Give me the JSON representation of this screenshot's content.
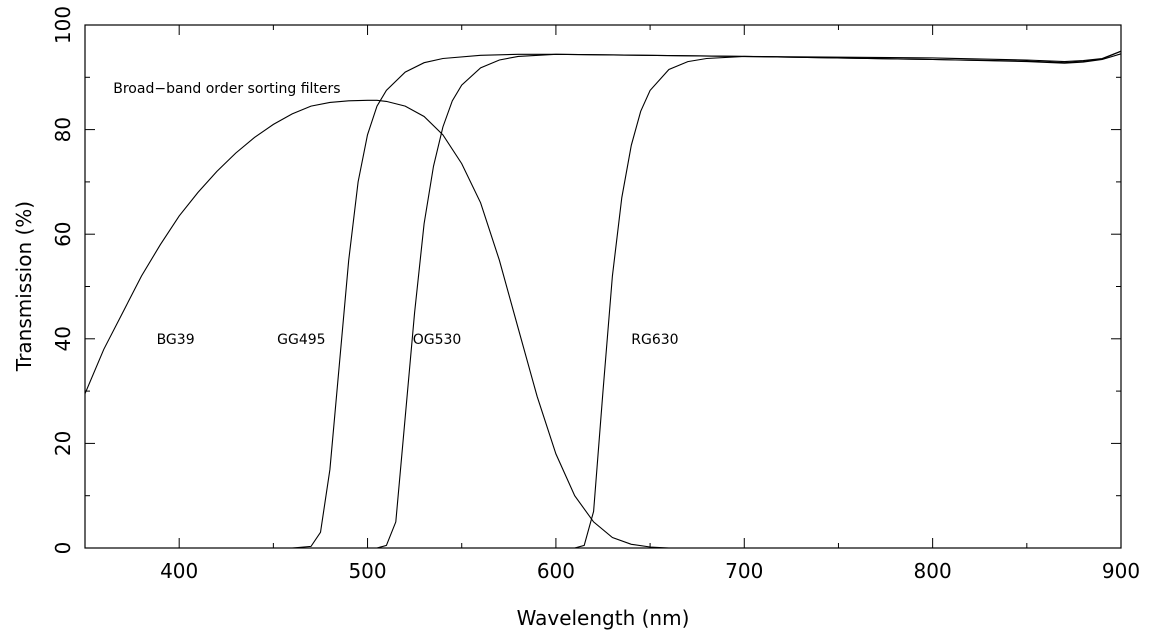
{
  "chart_data": {
    "type": "line",
    "title": "",
    "xlabel": "Wavelength (nm)",
    "ylabel": "Transmission (%)",
    "xlim": [
      350,
      900
    ],
    "ylim": [
      0,
      100
    ],
    "grid": false,
    "x_ticks_major": [
      400,
      500,
      600,
      700,
      800,
      900
    ],
    "x_ticks_minor": [
      350,
      450,
      550,
      650,
      750,
      850
    ],
    "y_ticks_major": [
      0,
      20,
      40,
      60,
      80,
      100
    ],
    "y_ticks_minor": [
      10,
      30,
      50,
      70,
      90
    ],
    "annotations": [
      {
        "id": "heading",
        "text": "Broad−band order sorting filters",
        "x": 365,
        "y": 88
      },
      {
        "id": "bg39",
        "text": "BG39",
        "x": 388,
        "y": 40
      },
      {
        "id": "gg495",
        "text": "GG495",
        "x": 452,
        "y": 40
      },
      {
        "id": "og530",
        "text": "OG530",
        "x": 524,
        "y": 40
      },
      {
        "id": "rg630",
        "text": "RG630",
        "x": 640,
        "y": 40
      }
    ],
    "series": [
      {
        "name": "BG39",
        "x": [
          350,
          360,
          370,
          380,
          390,
          400,
          410,
          420,
          430,
          440,
          450,
          460,
          470,
          480,
          490,
          500,
          505,
          510,
          520,
          530,
          540,
          550,
          560,
          570,
          580,
          590,
          600,
          610,
          620,
          630,
          640,
          650,
          660,
          700,
          800,
          900
        ],
        "y": [
          29.5,
          38,
          45,
          52,
          58,
          63.5,
          68,
          72,
          75.5,
          78.5,
          81,
          83,
          84.5,
          85.2,
          85.5,
          85.6,
          85.6,
          85.4,
          84.5,
          82.5,
          79,
          73.5,
          66,
          55,
          42,
          29,
          18,
          10,
          5,
          2,
          0.7,
          0.2,
          0,
          0,
          0,
          0
        ]
      },
      {
        "name": "GG495",
        "x": [
          350,
          460,
          470,
          475,
          480,
          485,
          490,
          495,
          500,
          505,
          510,
          520,
          530,
          540,
          560,
          580,
          600,
          700,
          800,
          850,
          870,
          880,
          890,
          900
        ],
        "y": [
          0,
          0,
          0.3,
          3,
          15,
          35,
          55,
          70,
          79,
          84.5,
          87.5,
          91,
          92.8,
          93.6,
          94.2,
          94.4,
          94.4,
          94,
          93.4,
          93.1,
          92.8,
          93,
          93.5,
          95
        ]
      },
      {
        "name": "OG530",
        "x": [
          350,
          505,
          510,
          515,
          520,
          525,
          530,
          535,
          540,
          545,
          550,
          560,
          570,
          580,
          600,
          700,
          800,
          850,
          870,
          880,
          890,
          900
        ],
        "y": [
          0,
          0,
          0.5,
          5,
          25,
          45,
          62,
          73,
          80.5,
          85.5,
          88.5,
          91.8,
          93.3,
          94,
          94.4,
          94,
          93.4,
          93,
          92.7,
          92.9,
          93.4,
          94.5
        ]
      },
      {
        "name": "RG630",
        "x": [
          350,
          610,
          615,
          620,
          625,
          630,
          635,
          640,
          645,
          650,
          660,
          670,
          680,
          700,
          800,
          850,
          870,
          880,
          890,
          900
        ],
        "y": [
          0,
          0,
          0.5,
          7,
          30,
          52,
          67,
          77,
          83.5,
          87.5,
          91.5,
          93,
          93.6,
          94,
          93.7,
          93.3,
          93,
          93.2,
          93.6,
          95
        ]
      }
    ]
  }
}
